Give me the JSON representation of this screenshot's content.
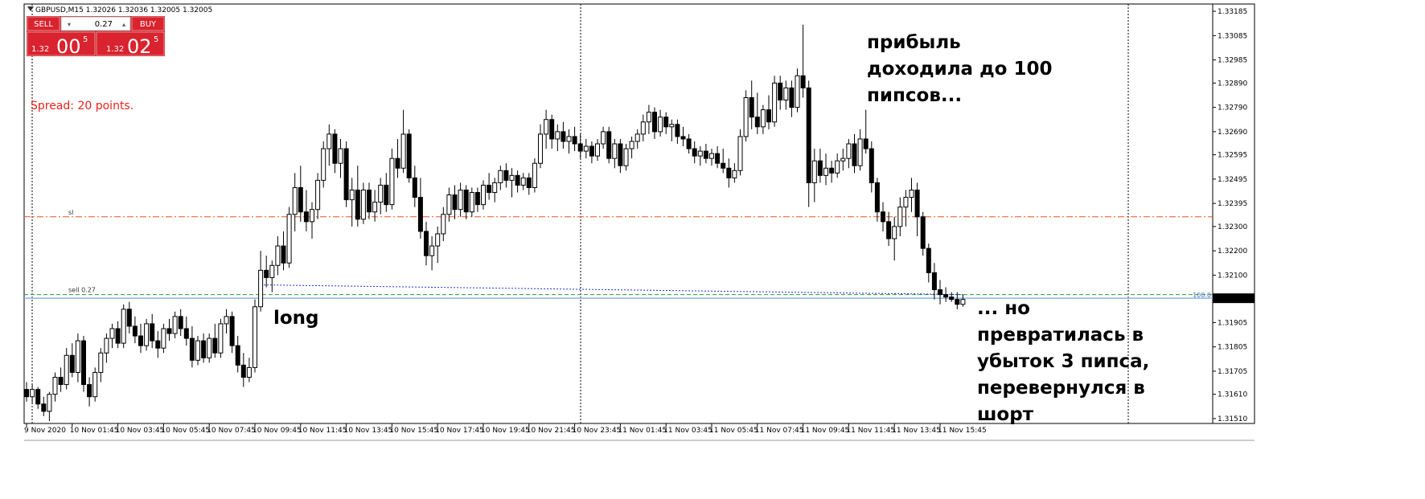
{
  "window": {
    "title": "GBPUSD,M15  1.32026 1.32036 1.32005 1.32005"
  },
  "trade_panel": {
    "sell": "SELL",
    "lot": "0.27",
    "buy": "BUY",
    "bid": {
      "big": "1.32",
      "pips": "00",
      "point": "5"
    },
    "ask": {
      "big": "1.32",
      "pips": "02",
      "point": "5"
    }
  },
  "spread_text": "Spread: 20 points.",
  "chart_data": {
    "type": "candlestick",
    "categories": [
      "9 Nov 2020",
      null,
      null,
      null,
      null,
      null,
      null,
      null,
      "10 Nov 01:45",
      null,
      null,
      null,
      null,
      null,
      null,
      null,
      "10 Nov 03:45",
      null,
      null,
      null,
      null,
      null,
      null,
      null,
      "10 Nov 05:45",
      null,
      null,
      null,
      null,
      null,
      null,
      null,
      "10 Nov 07:45",
      null,
      null,
      null,
      null,
      null,
      null,
      null,
      "10 Nov 09:45",
      null,
      null,
      null,
      null,
      null,
      null,
      null,
      "10 Nov 11:45",
      null,
      null,
      null,
      null,
      null,
      null,
      null,
      "10 Nov 13:45",
      null,
      null,
      null,
      null,
      null,
      null,
      null,
      "10 Nov 15:45",
      null,
      null,
      null,
      null,
      null,
      null,
      null,
      "10 Nov 17:45",
      null,
      null,
      null,
      null,
      null,
      null,
      null,
      "10 Nov 19:45",
      null,
      null,
      null,
      null,
      null,
      null,
      null,
      "10 Nov 21:45",
      null,
      null,
      null,
      null,
      null,
      null,
      null,
      "10 Nov 23:45",
      null,
      null,
      null,
      null,
      null,
      null,
      null,
      "11 Nov 01:45",
      null,
      null,
      null,
      null,
      null,
      null,
      null,
      "11 Nov 03:45",
      null,
      null,
      null,
      null,
      null,
      null,
      null,
      "11 Nov 05:45",
      null,
      null,
      null,
      null,
      null,
      null,
      null,
      "11 Nov 07:45",
      null,
      null,
      null,
      null,
      null,
      null,
      null,
      "11 Nov 09:45",
      null,
      null,
      null,
      null,
      null,
      null,
      null,
      "11 Nov 11:45",
      null,
      null,
      null,
      null,
      null,
      null,
      null,
      "11 Nov 13:45",
      null,
      null,
      null,
      null,
      null,
      null,
      null,
      "11 Nov 15:45",
      null,
      null,
      null,
      null
    ],
    "ohlc": [
      [
        1.3163,
        1.3166,
        1.3158,
        1.316
      ],
      [
        1.316,
        1.3165,
        1.3157,
        1.3163
      ],
      [
        1.3163,
        1.3164,
        1.3155,
        1.3157
      ],
      [
        1.3157,
        1.316,
        1.3152,
        1.3154
      ],
      [
        1.3154,
        1.3162,
        1.315,
        1.3161
      ],
      [
        1.3161,
        1.317,
        1.3158,
        1.3168
      ],
      [
        1.3168,
        1.3172,
        1.3162,
        1.3165
      ],
      [
        1.3165,
        1.318,
        1.3163,
        1.3177
      ],
      [
        1.3177,
        1.3182,
        1.3168,
        1.317
      ],
      [
        1.317,
        1.3186,
        1.3166,
        1.3183
      ],
      [
        1.3183,
        1.3185,
        1.3162,
        1.3165
      ],
      [
        1.3165,
        1.3168,
        1.3156,
        1.316
      ],
      [
        1.316,
        1.3172,
        1.3158,
        1.317
      ],
      [
        1.317,
        1.318,
        1.3166,
        1.3178
      ],
      [
        1.3178,
        1.3186,
        1.3174,
        1.3184
      ],
      [
        1.3184,
        1.319,
        1.318,
        1.3188
      ],
      [
        1.3188,
        1.3191,
        1.318,
        1.3182
      ],
      [
        1.3182,
        1.3198,
        1.318,
        1.3196
      ],
      [
        1.3196,
        1.3199,
        1.3186,
        1.3189
      ],
      [
        1.3189,
        1.3193,
        1.3182,
        1.3185
      ],
      [
        1.3185,
        1.319,
        1.3178,
        1.3181
      ],
      [
        1.3181,
        1.3192,
        1.3179,
        1.319
      ],
      [
        1.319,
        1.3194,
        1.318,
        1.3183
      ],
      [
        1.3183,
        1.3187,
        1.3176,
        1.318
      ],
      [
        1.318,
        1.319,
        1.3178,
        1.3188
      ],
      [
        1.3188,
        1.3192,
        1.3183,
        1.3186
      ],
      [
        1.3186,
        1.3195,
        1.3184,
        1.3193
      ],
      [
        1.3193,
        1.3196,
        1.3185,
        1.3188
      ],
      [
        1.3188,
        1.3193,
        1.3181,
        1.3184
      ],
      [
        1.3184,
        1.3189,
        1.3172,
        1.3175
      ],
      [
        1.3175,
        1.3185,
        1.3173,
        1.3183
      ],
      [
        1.3183,
        1.3186,
        1.3174,
        1.3176
      ],
      [
        1.3176,
        1.3186,
        1.3174,
        1.3184
      ],
      [
        1.3184,
        1.319,
        1.3176,
        1.3178
      ],
      [
        1.3178,
        1.3192,
        1.3176,
        1.319
      ],
      [
        1.319,
        1.3196,
        1.3186,
        1.3193
      ],
      [
        1.3193,
        1.3195,
        1.3178,
        1.3181
      ],
      [
        1.3181,
        1.3185,
        1.317,
        1.3173
      ],
      [
        1.3173,
        1.3178,
        1.3164,
        1.3168
      ],
      [
        1.3168,
        1.3176,
        1.3166,
        1.3172
      ],
      [
        1.3172,
        1.32,
        1.317,
        1.3197
      ],
      [
        1.3197,
        1.322,
        1.3195,
        1.3212
      ],
      [
        1.3212,
        1.3218,
        1.3205,
        1.3209
      ],
      [
        1.3209,
        1.3216,
        1.3203,
        1.3214
      ],
      [
        1.3214,
        1.3226,
        1.321,
        1.3222
      ],
      [
        1.3222,
        1.3228,
        1.3212,
        1.3215
      ],
      [
        1.3215,
        1.3238,
        1.3213,
        1.3235
      ],
      [
        1.3235,
        1.3252,
        1.3228,
        1.3246
      ],
      [
        1.3246,
        1.3255,
        1.3232,
        1.3236
      ],
      [
        1.3236,
        1.3245,
        1.3228,
        1.3232
      ],
      [
        1.3232,
        1.324,
        1.3225,
        1.3237
      ],
      [
        1.3237,
        1.3252,
        1.3233,
        1.3249
      ],
      [
        1.3249,
        1.3265,
        1.3246,
        1.3262
      ],
      [
        1.3262,
        1.3272,
        1.3255,
        1.3268
      ],
      [
        1.3268,
        1.327,
        1.3252,
        1.3256
      ],
      [
        1.3256,
        1.3266,
        1.325,
        1.3262
      ],
      [
        1.3262,
        1.3265,
        1.3238,
        1.3241
      ],
      [
        1.3241,
        1.325,
        1.323,
        1.3245
      ],
      [
        1.3245,
        1.3255,
        1.323,
        1.3233
      ],
      [
        1.3233,
        1.3248,
        1.3231,
        1.3245
      ],
      [
        1.3245,
        1.3248,
        1.3233,
        1.3236
      ],
      [
        1.3236,
        1.3245,
        1.3232,
        1.324
      ],
      [
        1.324,
        1.325,
        1.3235,
        1.3247
      ],
      [
        1.3247,
        1.3252,
        1.3236,
        1.3239
      ],
      [
        1.3239,
        1.3262,
        1.3237,
        1.3258
      ],
      [
        1.3258,
        1.3266,
        1.325,
        1.3254
      ],
      [
        1.3254,
        1.3278,
        1.3252,
        1.3268
      ],
      [
        1.3268,
        1.327,
        1.3248,
        1.325
      ],
      [
        1.325,
        1.3255,
        1.3238,
        1.3242
      ],
      [
        1.3242,
        1.325,
        1.3225,
        1.3228
      ],
      [
        1.3228,
        1.3232,
        1.3214,
        1.3218
      ],
      [
        1.3218,
        1.3226,
        1.3212,
        1.3222
      ],
      [
        1.3222,
        1.323,
        1.3215,
        1.3227
      ],
      [
        1.3227,
        1.3238,
        1.3224,
        1.3235
      ],
      [
        1.3235,
        1.3246,
        1.3232,
        1.3243
      ],
      [
        1.3243,
        1.3247,
        1.3233,
        1.3237
      ],
      [
        1.3237,
        1.3248,
        1.3234,
        1.3245
      ],
      [
        1.3245,
        1.3247,
        1.3233,
        1.3236
      ],
      [
        1.3236,
        1.3246,
        1.3234,
        1.3244
      ],
      [
        1.3244,
        1.3246,
        1.3236,
        1.3239
      ],
      [
        1.3239,
        1.3249,
        1.3237,
        1.3247
      ],
      [
        1.3247,
        1.3252,
        1.3241,
        1.3244
      ],
      [
        1.3244,
        1.325,
        1.324,
        1.3248
      ],
      [
        1.3248,
        1.3255,
        1.3245,
        1.3253
      ],
      [
        1.3253,
        1.3256,
        1.3246,
        1.3249
      ],
      [
        1.3249,
        1.3254,
        1.3242,
        1.3251
      ],
      [
        1.3251,
        1.3253,
        1.3244,
        1.3247
      ],
      [
        1.3247,
        1.3252,
        1.3245,
        1.325
      ],
      [
        1.325,
        1.3252,
        1.3243,
        1.3246
      ],
      [
        1.3246,
        1.3258,
        1.3244,
        1.3256
      ],
      [
        1.3256,
        1.3272,
        1.3254,
        1.3268
      ],
      [
        1.3268,
        1.3278,
        1.3262,
        1.3274
      ],
      [
        1.3274,
        1.3276,
        1.3262,
        1.3266
      ],
      [
        1.3266,
        1.3272,
        1.3261,
        1.3269
      ],
      [
        1.3269,
        1.3273,
        1.3262,
        1.3265
      ],
      [
        1.3265,
        1.327,
        1.326,
        1.3267
      ],
      [
        1.3267,
        1.3271,
        1.3261,
        1.3264
      ],
      [
        1.3264,
        1.3268,
        1.3258,
        1.3261
      ],
      [
        1.3261,
        1.3266,
        1.3258,
        1.3263
      ],
      [
        1.3263,
        1.3265,
        1.3256,
        1.3259
      ],
      [
        1.3259,
        1.3266,
        1.3257,
        1.3264
      ],
      [
        1.3264,
        1.3271,
        1.3262,
        1.3269
      ],
      [
        1.3269,
        1.3271,
        1.3256,
        1.3258
      ],
      [
        1.3258,
        1.3266,
        1.3254,
        1.3264
      ],
      [
        1.3264,
        1.3266,
        1.3252,
        1.3255
      ],
      [
        1.3255,
        1.3264,
        1.3253,
        1.3262
      ],
      [
        1.3262,
        1.3267,
        1.3258,
        1.3265
      ],
      [
        1.3265,
        1.327,
        1.3262,
        1.3268
      ],
      [
        1.3268,
        1.3276,
        1.3265,
        1.3273
      ],
      [
        1.3273,
        1.328,
        1.3268,
        1.3277
      ],
      [
        1.3277,
        1.3279,
        1.3266,
        1.3269
      ],
      [
        1.3269,
        1.3278,
        1.3267,
        1.3275
      ],
      [
        1.3275,
        1.3277,
        1.3268,
        1.3271
      ],
      [
        1.3271,
        1.3274,
        1.3265,
        1.3272
      ],
      [
        1.3272,
        1.3274,
        1.3264,
        1.3267
      ],
      [
        1.3267,
        1.3271,
        1.3263,
        1.3266
      ],
      [
        1.3266,
        1.3268,
        1.326,
        1.3262
      ],
      [
        1.3262,
        1.3265,
        1.3256,
        1.3259
      ],
      [
        1.3259,
        1.3263,
        1.3255,
        1.3261
      ],
      [
        1.3261,
        1.3264,
        1.3256,
        1.3258
      ],
      [
        1.3258,
        1.3262,
        1.3255,
        1.326
      ],
      [
        1.326,
        1.3263,
        1.3254,
        1.3256
      ],
      [
        1.3256,
        1.3262,
        1.3252,
        1.3254
      ],
      [
        1.3254,
        1.3258,
        1.3246,
        1.325
      ],
      [
        1.325,
        1.3256,
        1.3248,
        1.3253
      ],
      [
        1.3253,
        1.327,
        1.3251,
        1.3267
      ],
      [
        1.3267,
        1.3286,
        1.3265,
        1.3283
      ],
      [
        1.3283,
        1.329,
        1.327,
        1.3275
      ],
      [
        1.3275,
        1.3285,
        1.3268,
        1.3271
      ],
      [
        1.3271,
        1.328,
        1.3268,
        1.3278
      ],
      [
        1.3278,
        1.3284,
        1.327,
        1.3273
      ],
      [
        1.3273,
        1.3292,
        1.3271,
        1.3289
      ],
      [
        1.3289,
        1.3292,
        1.3278,
        1.3282
      ],
      [
        1.3282,
        1.329,
        1.3278,
        1.3287
      ],
      [
        1.3287,
        1.329,
        1.3275,
        1.3279
      ],
      [
        1.3279,
        1.3295,
        1.3277,
        1.3292
      ],
      [
        1.3292,
        1.3313,
        1.3283,
        1.3287
      ],
      [
        1.3287,
        1.329,
        1.3238,
        1.3248
      ],
      [
        1.3248,
        1.3262,
        1.324,
        1.3257
      ],
      [
        1.3257,
        1.3262,
        1.3248,
        1.3251
      ],
      [
        1.3251,
        1.326,
        1.3247,
        1.3254
      ],
      [
        1.3254,
        1.3257,
        1.3248,
        1.3252
      ],
      [
        1.3252,
        1.326,
        1.325,
        1.3257
      ],
      [
        1.3257,
        1.3262,
        1.3253,
        1.3258
      ],
      [
        1.3258,
        1.3266,
        1.3254,
        1.3264
      ],
      [
        1.3264,
        1.3268,
        1.3252,
        1.3255
      ],
      [
        1.3255,
        1.327,
        1.3253,
        1.3266
      ],
      [
        1.3266,
        1.3278,
        1.326,
        1.3262
      ],
      [
        1.3262,
        1.3265,
        1.3244,
        1.3248
      ],
      [
        1.3248,
        1.325,
        1.3232,
        1.3236
      ],
      [
        1.3236,
        1.324,
        1.3228,
        1.3232
      ],
      [
        1.3232,
        1.3236,
        1.3222,
        1.3225
      ],
      [
        1.3225,
        1.3234,
        1.3216,
        1.323
      ],
      [
        1.323,
        1.3242,
        1.3226,
        1.3238
      ],
      [
        1.3238,
        1.3245,
        1.323,
        1.3242
      ],
      [
        1.3242,
        1.325,
        1.3236,
        1.3245
      ],
      [
        1.3245,
        1.3248,
        1.3226,
        1.3234
      ],
      [
        1.3234,
        1.3236,
        1.3218,
        1.3221
      ],
      [
        1.3221,
        1.3223,
        1.3207,
        1.3211
      ],
      [
        1.3211,
        1.3215,
        1.32,
        1.3204
      ],
      [
        1.3204,
        1.3208,
        1.3198,
        1.3202
      ],
      [
        1.3202,
        1.3205,
        1.3199,
        1.3201
      ],
      [
        1.3201,
        1.3203,
        1.3199,
        1.32
      ],
      [
        1.32,
        1.3203,
        1.3196,
        1.3198
      ],
      [
        1.3198,
        1.3202,
        1.3197,
        1.32
      ]
    ],
    "bull_color": "#ffffff",
    "bear_color": "#000000",
    "ylim": [
      1.3149,
      1.33215
    ],
    "yticks": [
      1.33185,
      1.33085,
      1.32985,
      {
        "value": 1.3289,
        "label": "1.32890"
      },
      {
        "value": 1.3279,
        "label": "1.32790"
      },
      {
        "value": 1.3269,
        "label": "1.32690"
      },
      1.32595,
      1.32495,
      1.32395,
      {
        "value": 1.323,
        "label": "1.32300"
      },
      {
        "value": 1.322,
        "label": "1.32200"
      },
      {
        "value": 1.321,
        "label": "1.32100"
      },
      1.31905,
      1.31805,
      1.31705,
      {
        "value": 1.3161,
        "label": "1.31610"
      },
      {
        "value": 1.3151,
        "label": "1.31510"
      }
    ],
    "bid_line": {
      "value": 1.32005,
      "note": "100.0",
      "color": "#8fb3e8"
    },
    "levels": [
      {
        "name": "sl",
        "value": 1.3234,
        "color": "#e8561f",
        "dash": "8 3 2 3"
      },
      {
        "name": "sell 0.27",
        "value": 1.3202,
        "color": "#2e9a2e",
        "dash": "5 3"
      }
    ],
    "trade_line": {
      "x": [
        41,
        164
      ],
      "values": [
        1.3206,
        1.3202
      ],
      "color": "#1f2fd6"
    },
    "annotations": [
      {
        "lines": [
          "прибыль",
          "доходила до 100",
          "пипсов..."
        ]
      },
      {
        "lines": [
          "long"
        ]
      },
      {
        "lines": [
          "... но",
          "превратилась в",
          "убыток 3 пипса,",
          "перевернулся в",
          "шорт"
        ]
      }
    ]
  }
}
